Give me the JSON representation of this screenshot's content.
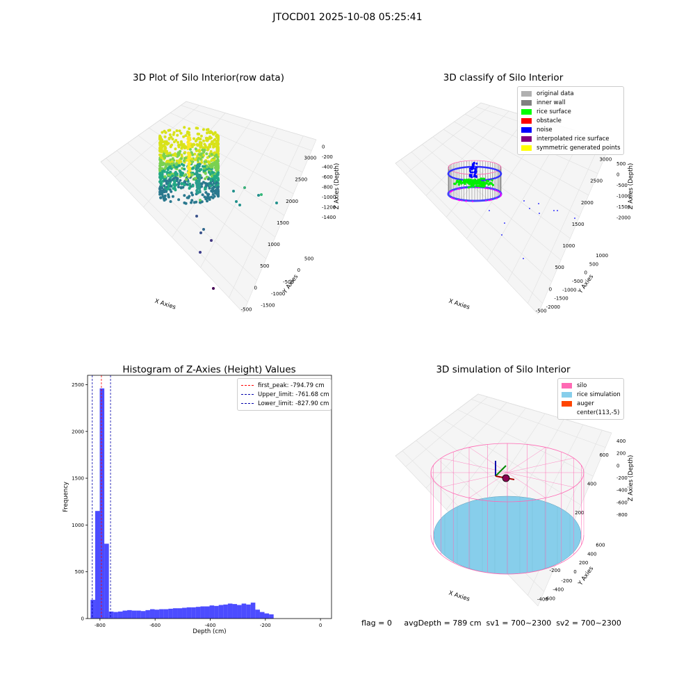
{
  "suptitle": "JTOCD01 2025-10-08 05:25:41",
  "panels": {
    "raw": {
      "title": "3D Plot of Silo Interior(row data)",
      "xlabel": "X Axies",
      "ylabel": "Y Axies",
      "zlabel": "Z Axies (Depth)",
      "xticks": [
        "-500",
        "0",
        "500",
        "1000",
        "1500",
        "2000",
        "2500",
        "3000"
      ],
      "yticks": [
        "500",
        "0",
        "-500",
        "-1000",
        "-1500"
      ],
      "zticks": [
        "0",
        "-200",
        "-400",
        "-600",
        "-800",
        "-1000",
        "-1200",
        "-1400"
      ]
    },
    "classify": {
      "title": "3D classify of Silo Interior",
      "xlabel": "X Axies",
      "ylabel": "Y Axies",
      "zlabel": "Z Axies (Depth)",
      "xticks": [
        "-500",
        "0",
        "500",
        "1000",
        "1500",
        "2000",
        "2500",
        "3000"
      ],
      "yticks": [
        "1000",
        "500",
        "0",
        "-500",
        "-1000",
        "-1500",
        "-2000"
      ],
      "zticks": [
        "500",
        "0",
        "-500",
        "-1000",
        "-1500",
        "-2000"
      ],
      "legend": [
        {
          "label": "original data",
          "color": "#b0b0b0"
        },
        {
          "label": "inner wall",
          "color": "#808080"
        },
        {
          "label": "rice surface",
          "color": "#00ff00"
        },
        {
          "label": "obstacle",
          "color": "#ff0000"
        },
        {
          "label": "noise",
          "color": "#0000ff"
        },
        {
          "label": "interpolated rice surface",
          "color": "#800080"
        },
        {
          "label": "symmetric generated points",
          "color": "#ffff00"
        }
      ]
    },
    "simulation": {
      "title": "3D simulation of Silo Interior",
      "xlabel": "X Axies",
      "ylabel": "Y Axies",
      "zlabel": "Z Axies (Depth)",
      "xticks": [
        "-400",
        "-200",
        "0",
        "200",
        "400",
        "600"
      ],
      "yticks": [
        "600",
        "400",
        "200",
        "0",
        "-200",
        "-400",
        "-600"
      ],
      "zticks": [
        "400",
        "200",
        "0",
        "-200",
        "-400",
        "-600",
        "-800"
      ],
      "legend": [
        {
          "label": "silo",
          "color": "#ff69b4"
        },
        {
          "label": "rice simulation",
          "color": "#87ceeb"
        },
        {
          "label": "auger",
          "color": "#ff4500"
        },
        {
          "label": "center(113,-5)",
          "color": "#ffffff"
        }
      ]
    }
  },
  "chart_data": {
    "type": "bar",
    "title": "Histogram of Z-Axies (Height) Values",
    "xlabel": "Depth (cm)",
    "ylabel": "Frequency",
    "xlim": [
      -845,
      40
    ],
    "ylim": [
      0,
      2600
    ],
    "xticks": [
      -800,
      -600,
      -400,
      -200,
      0
    ],
    "yticks": [
      0,
      500,
      1000,
      1500,
      2000,
      2500
    ],
    "bin_start": -834,
    "bin_width": 16.6,
    "values": [
      200,
      1150,
      2460,
      800,
      75,
      70,
      75,
      85,
      90,
      85,
      85,
      80,
      90,
      100,
      95,
      100,
      100,
      105,
      110,
      110,
      115,
      120,
      120,
      125,
      130,
      130,
      140,
      135,
      145,
      150,
      160,
      155,
      145,
      160,
      150,
      170,
      95,
      70,
      55,
      45
    ],
    "bar_color": "#0000ff",
    "vlines": [
      {
        "label": "first_peak: -794.79 cm",
        "x": -794.79,
        "color": "#ff0000"
      },
      {
        "label": "Upper_limit: -761.68 cm",
        "x": -761.68,
        "color": "#0000aa"
      },
      {
        "label": "Lower_limit: -827.90 cm",
        "x": -827.9,
        "color": "#0000aa"
      }
    ],
    "legend_position": "top-right"
  },
  "footer": {
    "text": "flag = 0     avgDepth = 789 cm  sv1 = 700~2300  sv2 = 700~2300"
  }
}
